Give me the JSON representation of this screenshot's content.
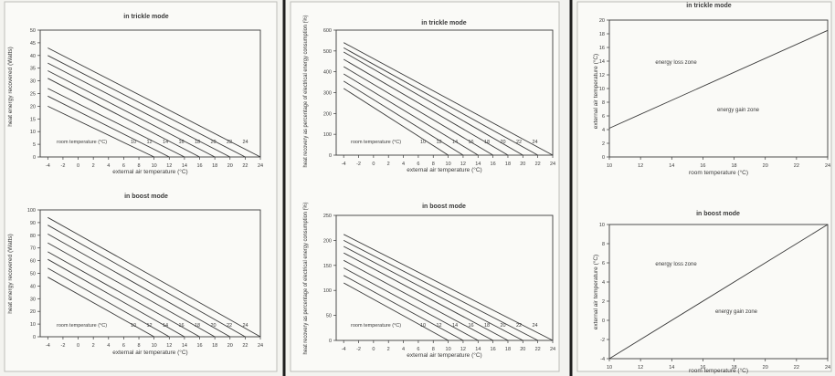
{
  "chart_data": [
    {
      "type": "line",
      "title": "in trickle mode",
      "xlabel": "external air temperature (°C)",
      "ylabel": "heat energy recovered (Watts)",
      "xlim": [
        -5,
        24
      ],
      "ylim": [
        0,
        50
      ],
      "x_ticks": [
        "-4",
        "-2",
        "0",
        "2",
        "4",
        "6",
        "8",
        "10",
        "12",
        "14",
        "16",
        "18",
        "20",
        "22",
        "24"
      ],
      "y_ticks": [
        "0",
        "5",
        "10",
        "15",
        "20",
        "25",
        "30",
        "35",
        "40",
        "45",
        "50"
      ],
      "inline_label": "room temperature (°C)",
      "line_labels": [
        "10",
        "12",
        "14",
        "16",
        "18",
        "20",
        "22",
        "24"
      ],
      "series": [
        {
          "name": "10",
          "x": [
            -4,
            10
          ],
          "y": [
            20,
            0
          ]
        },
        {
          "name": "12",
          "x": [
            -4,
            12
          ],
          "y": [
            24,
            0
          ]
        },
        {
          "name": "14",
          "x": [
            -4,
            14
          ],
          "y": [
            27,
            0
          ]
        },
        {
          "name": "16",
          "x": [
            -4,
            16
          ],
          "y": [
            31,
            0
          ]
        },
        {
          "name": "18",
          "x": [
            -4,
            18
          ],
          "y": [
            34,
            0
          ]
        },
        {
          "name": "20",
          "x": [
            -4,
            20
          ],
          "y": [
            37,
            0
          ]
        },
        {
          "name": "22",
          "x": [
            -4,
            22
          ],
          "y": [
            40,
            0
          ]
        },
        {
          "name": "24",
          "x": [
            -4,
            24
          ],
          "y": [
            43,
            0
          ]
        }
      ],
      "grid": false
    },
    {
      "type": "line",
      "title": "in boost mode",
      "xlabel": "external air temperature (°C)",
      "ylabel": "heat energy recovered (Watts)",
      "xlim": [
        -5,
        24
      ],
      "ylim": [
        0,
        100
      ],
      "x_ticks": [
        "-4",
        "-2",
        "0",
        "2",
        "4",
        "6",
        "8",
        "10",
        "12",
        "14",
        "16",
        "18",
        "20",
        "22",
        "24"
      ],
      "y_ticks": [
        "0",
        "10",
        "20",
        "30",
        "40",
        "50",
        "60",
        "70",
        "80",
        "90",
        "100"
      ],
      "inline_label": "room temperature (°C)",
      "line_labels": [
        "10",
        "12",
        "14",
        "16",
        "18",
        "20",
        "22",
        "24"
      ],
      "series": [
        {
          "name": "10",
          "x": [
            -4,
            10
          ],
          "y": [
            47,
            0
          ]
        },
        {
          "name": "12",
          "x": [
            -4,
            12
          ],
          "y": [
            54,
            0
          ]
        },
        {
          "name": "14",
          "x": [
            -4,
            14
          ],
          "y": [
            61,
            0
          ]
        },
        {
          "name": "16",
          "x": [
            -4,
            16
          ],
          "y": [
            67,
            0
          ]
        },
        {
          "name": "18",
          "x": [
            -4,
            18
          ],
          "y": [
            74,
            0
          ]
        },
        {
          "name": "20",
          "x": [
            -4,
            20
          ],
          "y": [
            81,
            0
          ]
        },
        {
          "name": "22",
          "x": [
            -4,
            22
          ],
          "y": [
            88,
            0
          ]
        },
        {
          "name": "24",
          "x": [
            -4,
            24
          ],
          "y": [
            94,
            0
          ]
        }
      ],
      "grid": false
    },
    {
      "type": "line",
      "title": "in trickle mode",
      "xlabel": "external air temperature (°C)",
      "ylabel": "heat recovery as percentage of electrical energy consumption (%)",
      "xlim": [
        -5,
        24
      ],
      "ylim": [
        0,
        600
      ],
      "x_ticks": [
        "-4",
        "-2",
        "0",
        "2",
        "4",
        "6",
        "8",
        "10",
        "12",
        "14",
        "16",
        "18",
        "20",
        "22",
        "24"
      ],
      "y_ticks": [
        "0",
        "100",
        "200",
        "300",
        "400",
        "500",
        "600"
      ],
      "inline_label": "room temperature (°C)",
      "line_labels": [
        "10",
        "12",
        "14",
        "16",
        "18",
        "20",
        "22",
        "24"
      ],
      "series": [
        {
          "name": "10",
          "x": [
            -4,
            10
          ],
          "y": [
            320,
            0
          ]
        },
        {
          "name": "12",
          "x": [
            -4,
            12
          ],
          "y": [
            355,
            0
          ]
        },
        {
          "name": "14",
          "x": [
            -4,
            14
          ],
          "y": [
            390,
            0
          ]
        },
        {
          "name": "16",
          "x": [
            -4,
            16
          ],
          "y": [
            425,
            0
          ]
        },
        {
          "name": "18",
          "x": [
            -4,
            18
          ],
          "y": [
            460,
            0
          ]
        },
        {
          "name": "20",
          "x": [
            -4,
            20
          ],
          "y": [
            495,
            0
          ]
        },
        {
          "name": "22",
          "x": [
            -4,
            22
          ],
          "y": [
            515,
            0
          ]
        },
        {
          "name": "24",
          "x": [
            -4,
            24
          ],
          "y": [
            540,
            0
          ]
        }
      ],
      "grid": false
    },
    {
      "type": "line",
      "title": "in boost mode",
      "xlabel": "external air temperature (°C)",
      "ylabel": "heat recovery as percentage of electrical energy consumption (%)",
      "xlim": [
        -5,
        24
      ],
      "ylim": [
        0,
        250
      ],
      "x_ticks": [
        "-4",
        "-2",
        "0",
        "2",
        "4",
        "6",
        "8",
        "10",
        "12",
        "14",
        "16",
        "18",
        "20",
        "22",
        "24"
      ],
      "y_ticks": [
        "0",
        "50",
        "100",
        "150",
        "200",
        "250"
      ],
      "inline_label": "room temperature (°C)",
      "line_labels": [
        "10",
        "12",
        "14",
        "16",
        "18",
        "20",
        "22",
        "24"
      ],
      "series": [
        {
          "name": "10",
          "x": [
            -4,
            10
          ],
          "y": [
            115,
            0
          ]
        },
        {
          "name": "12",
          "x": [
            -4,
            12
          ],
          "y": [
            130,
            0
          ]
        },
        {
          "name": "14",
          "x": [
            -4,
            14
          ],
          "y": [
            145,
            0
          ]
        },
        {
          "name": "16",
          "x": [
            -4,
            16
          ],
          "y": [
            160,
            0
          ]
        },
        {
          "name": "18",
          "x": [
            -4,
            18
          ],
          "y": [
            175,
            0
          ]
        },
        {
          "name": "20",
          "x": [
            -4,
            20
          ],
          "y": [
            188,
            0
          ]
        },
        {
          "name": "22",
          "x": [
            -4,
            22
          ],
          "y": [
            200,
            0
          ]
        },
        {
          "name": "24",
          "x": [
            -4,
            24
          ],
          "y": [
            212,
            0
          ]
        }
      ],
      "grid": false
    },
    {
      "type": "line",
      "title": "in trickle mode",
      "xlabel": "room temperature (°C)",
      "ylabel": "external air temperature (°C)",
      "xlim": [
        10,
        24
      ],
      "ylim": [
        0,
        20
      ],
      "x_ticks": [
        "10",
        "12",
        "14",
        "16",
        "18",
        "20",
        "22",
        "24"
      ],
      "y_ticks": [
        "0",
        "2",
        "4",
        "6",
        "8",
        "10",
        "12",
        "14",
        "16",
        "18",
        "20"
      ],
      "annotations": [
        "energy loss zone",
        "energy gain zone"
      ],
      "series": [
        {
          "x": [
            10,
            24
          ],
          "y": [
            4.2,
            18.5
          ]
        }
      ],
      "grid": false
    },
    {
      "type": "line",
      "title": "in boost mode",
      "xlabel": "room temperature (°C)",
      "ylabel": "external air temperature (°C)",
      "xlim": [
        10,
        24
      ],
      "ylim": [
        -4,
        10
      ],
      "x_ticks": [
        "10",
        "12",
        "14",
        "16",
        "18",
        "20",
        "22",
        "24"
      ],
      "y_ticks": [
        "-4",
        "-2",
        "0",
        "2",
        "4",
        "6",
        "8",
        "10"
      ],
      "annotations": [
        "energy loss zone",
        "energy gain zone"
      ],
      "series": [
        {
          "x": [
            10,
            24
          ],
          "y": [
            -4,
            10
          ]
        }
      ],
      "grid": false
    }
  ],
  "colors": {
    "page": "#f3f3ef",
    "panel": "#fafaf7",
    "ink": "#3a3a3a",
    "edge": "#bdbdb8",
    "gutter": "#1e1e1e"
  }
}
